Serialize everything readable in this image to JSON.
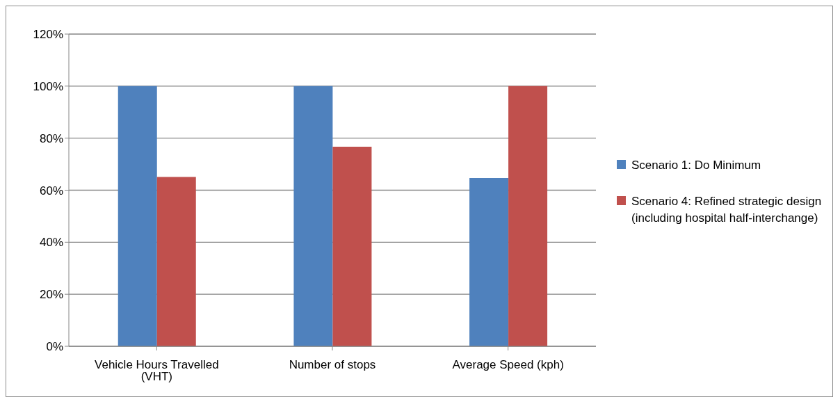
{
  "chart_data": {
    "type": "bar",
    "categories": [
      "Vehicle Hours Travelled (VHT)",
      "Number of stops",
      "Average Speed (kph)"
    ],
    "series": [
      {
        "name": "Scenario 1: Do Minimum",
        "color": "#4f81bd",
        "values": [
          100,
          100,
          64.7
        ]
      },
      {
        "name": "Scenario 4: Refined strategic design (including hospital half-interchange)",
        "color": "#c0504d",
        "values": [
          65.1,
          76.7,
          100
        ]
      }
    ],
    "ylim": [
      0,
      120
    ],
    "yticks": [
      {
        "value": 0,
        "label": "0%"
      },
      {
        "value": 20,
        "label": "20%"
      },
      {
        "value": 40,
        "label": "40%"
      },
      {
        "value": 60,
        "label": "60%"
      },
      {
        "value": 80,
        "label": "80%"
      },
      {
        "value": 100,
        "label": "100%"
      },
      {
        "value": 120,
        "label": "120%"
      }
    ],
    "grid": "y",
    "legend": "right"
  }
}
